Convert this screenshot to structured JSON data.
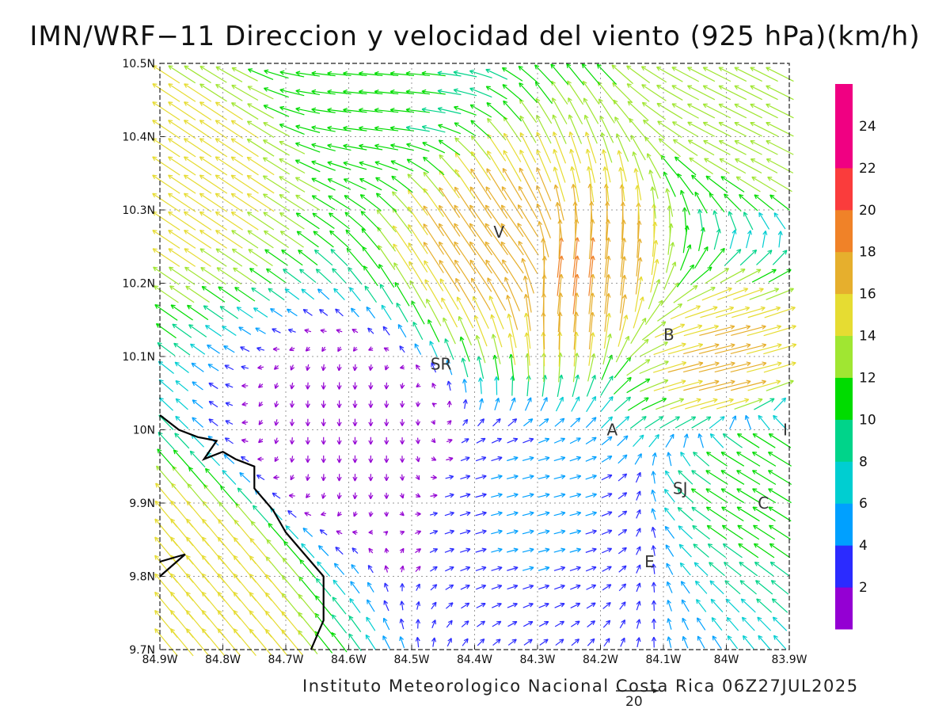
{
  "title": "IMN/WRF−11 Direccion y velocidad del viento (925 hPa)(km/h)",
  "credit": "Instituto Meteorologico Nacional Costa Rica  06Z27JUL2025",
  "reference_vector": {
    "label": "20",
    "speed": 20
  },
  "chart_data": {
    "type": "vector-field-map",
    "title": "IMN/WRF−11 Direccion y velocidad del viento (925 hPa)(km/h)",
    "x_range": [
      -84.9,
      -83.9
    ],
    "y_range": [
      9.7,
      10.5
    ],
    "x_ticks": [
      "84.9W",
      "84.8W",
      "84.7W",
      "84.6W",
      "84.5W",
      "84.4W",
      "84.3W",
      "84.2W",
      "84.1W",
      "84W",
      "83.9W"
    ],
    "y_ticks": [
      "9.7N",
      "9.8N",
      "9.9N",
      "10N",
      "10.1N",
      "10.2N",
      "10.3N",
      "10.4N",
      "10.5N"
    ],
    "grid": true,
    "colorbar": {
      "ticks": [
        "2",
        "4",
        "6",
        "8",
        "10",
        "12",
        "14",
        "16",
        "18",
        "20",
        "22",
        "24"
      ],
      "colors": [
        "#9400d3",
        "#2b2bff",
        "#00a0ff",
        "#00ced1",
        "#00d48a",
        "#00dc00",
        "#a0e632",
        "#e6dc32",
        "#e6af2d",
        "#f08228",
        "#fa3c3c",
        "#f00082"
      ]
    },
    "locations": [
      {
        "label": "V",
        "lon": -84.37,
        "lat": 10.27
      },
      {
        "label": "B",
        "lon": -84.1,
        "lat": 10.13
      },
      {
        "label": "SR",
        "lon": -84.47,
        "lat": 10.09
      },
      {
        "label": "A",
        "lon": -84.19,
        "lat": 10.0
      },
      {
        "label": "I",
        "lon": -83.91,
        "lat": 10.0
      },
      {
        "label": "SJ",
        "lon": -84.085,
        "lat": 9.92
      },
      {
        "label": "C",
        "lon": -83.95,
        "lat": 9.9
      },
      {
        "label": "E",
        "lon": -84.13,
        "lat": 9.82
      }
    ],
    "wind_samples": [
      {
        "lon": -84.85,
        "lat": 9.78,
        "u": -10,
        "v": 12
      },
      {
        "lon": -84.85,
        "lat": 10.35,
        "u": -12,
        "v": 8
      },
      {
        "lon": -84.55,
        "lat": 10.48,
        "u": -10,
        "v": 1
      },
      {
        "lon": -84.35,
        "lat": 10.25,
        "u": -10,
        "v": 14
      },
      {
        "lon": -84.25,
        "lat": 10.22,
        "u": 2,
        "v": 18
      },
      {
        "lon": -84.0,
        "lat": 10.08,
        "u": 16,
        "v": 4
      },
      {
        "lon": -83.95,
        "lat": 9.95,
        "u": -10,
        "v": 6
      },
      {
        "lon": -83.95,
        "lat": 10.45,
        "u": -12,
        "v": 6
      },
      {
        "lon": -84.6,
        "lat": 10.0,
        "u": 0,
        "v": -2
      },
      {
        "lon": -84.3,
        "lat": 9.9,
        "u": 4,
        "v": 1
      }
    ]
  }
}
